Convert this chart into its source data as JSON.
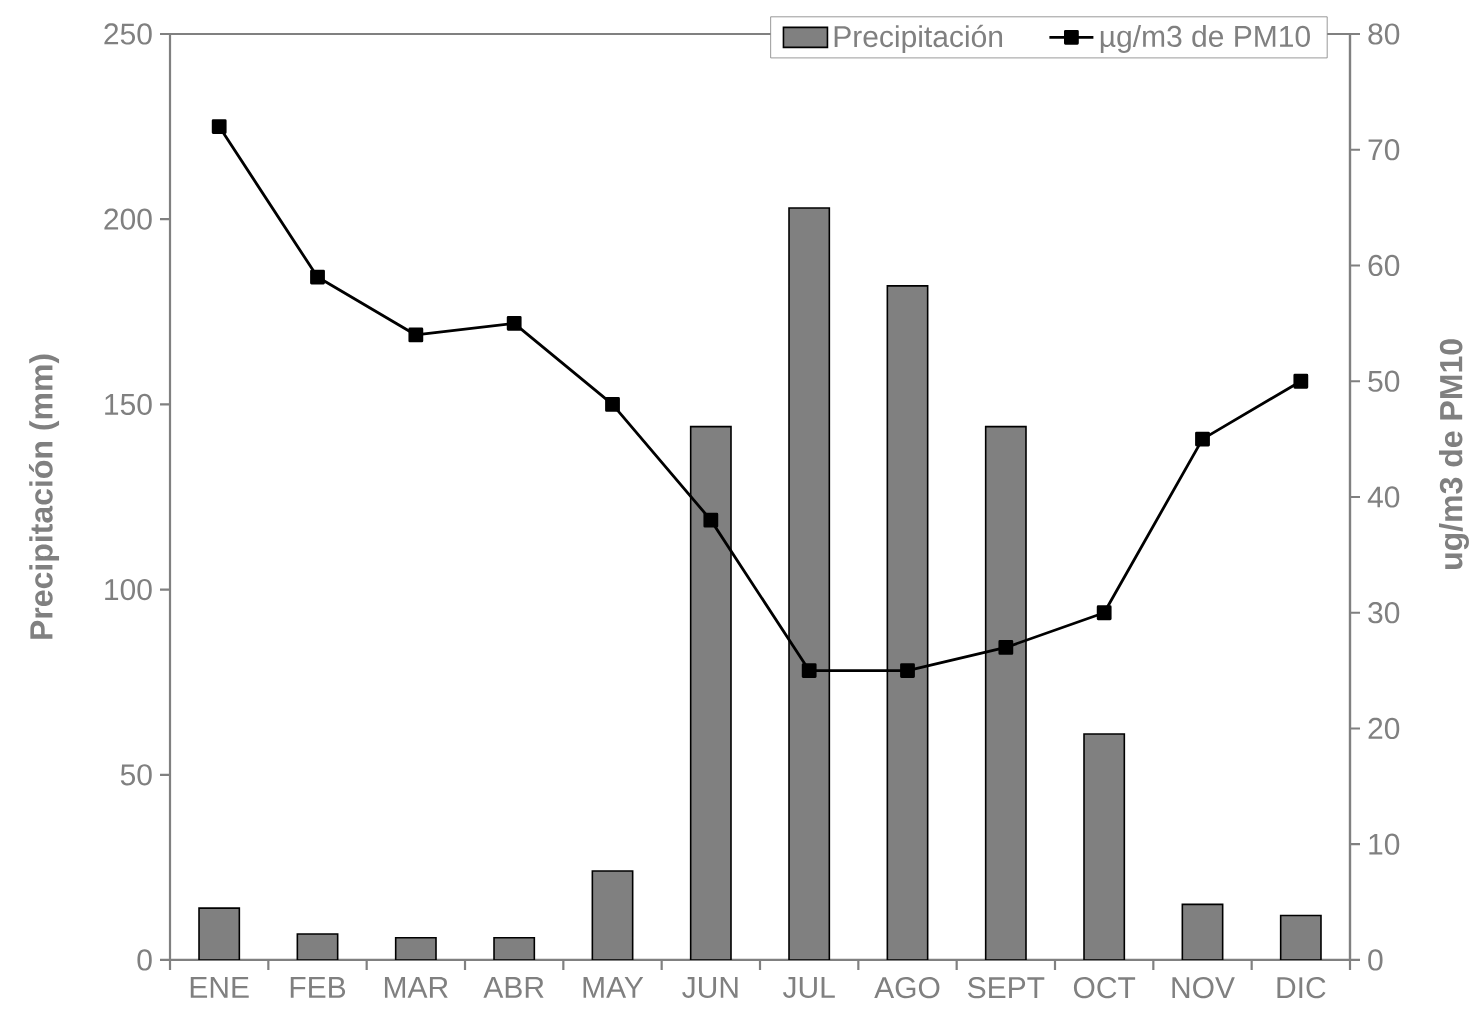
{
  "chart_data": {
    "type": "bar",
    "categories": [
      "ENE",
      "FEB",
      "MAR",
      "ABR",
      "MAY",
      "JUN",
      "JUL",
      "AGO",
      "SEPT",
      "OCT",
      "NOV",
      "DIC"
    ],
    "ylabel": "Precipitación (mm)",
    "y2label": "ug/m3 de PM10",
    "ylim": [
      0,
      250
    ],
    "yticks": [
      0,
      50,
      100,
      150,
      200,
      250
    ],
    "y2lim": [
      0,
      80
    ],
    "y2ticks": [
      0,
      10,
      20,
      30,
      40,
      50,
      60,
      70,
      80
    ],
    "series": [
      {
        "name": "Precipitación",
        "color": "#808080",
        "values": [
          14,
          7,
          6,
          6,
          24,
          144,
          203,
          182,
          144,
          61,
          15,
          12
        ]
      },
      {
        "name": "µg/m3 de PM10",
        "type": "line",
        "axis": "y2",
        "color": "#000000",
        "marker": "square",
        "values": [
          72,
          59,
          54,
          55,
          48,
          38,
          25,
          25,
          27,
          30,
          45,
          50
        ]
      }
    ],
    "legend": "top right"
  }
}
